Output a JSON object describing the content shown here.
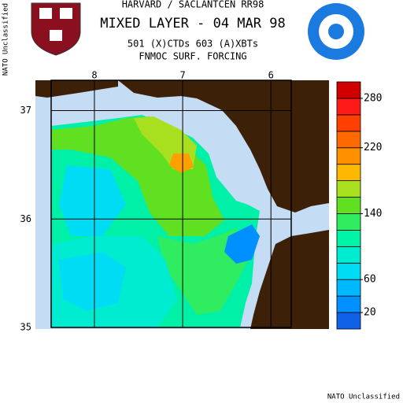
{
  "header": {
    "line1": "HARVARD / SACLANTCEN RR98",
    "title": "MIXED LAYER - 04 MAR 98",
    "line3": "501 (X)CTDs   603 (A)XBTs",
    "line4": "FNMOC SURF. FORCING"
  },
  "classification_left": "NATO Unclassified",
  "classification_bottom": "NATO Unclassified",
  "map": {
    "lonlim": [
      8.49,
      5.77
    ],
    "latlim": [
      35,
      37.28
    ],
    "lonticks": [
      8,
      7,
      6
    ],
    "latticks": [
      37,
      36,
      35
    ]
  },
  "colorbar": {
    "lim": [
      0,
      300
    ],
    "ticks": [
      20,
      60,
      140,
      220,
      280
    ],
    "colors": [
      "#1060e8",
      "#0090ff",
      "#00b8ff",
      "#00dcf4",
      "#00ecd0",
      "#00f4a8",
      "#30ec60",
      "#60e020",
      "#a8e020",
      "#ffb800",
      "#ff9000",
      "#ff6a00",
      "#ff4000",
      "#ff1a1a",
      "#d00000"
    ]
  }
}
